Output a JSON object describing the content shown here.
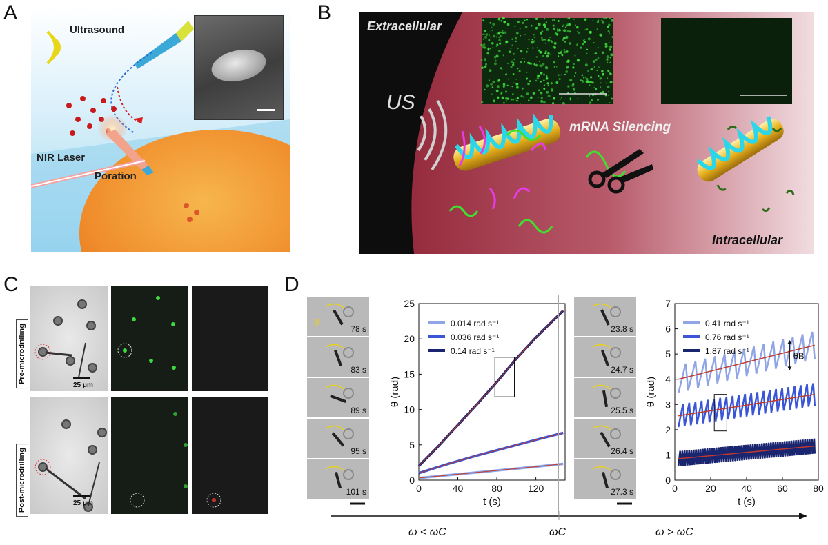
{
  "panels": {
    "a": {
      "label": "A",
      "ultrasound": "Ultrasound",
      "nir_laser": "NIR Laser",
      "poration": "Poration"
    },
    "b": {
      "label": "B",
      "extracellular": "Extracellular",
      "us": "US",
      "mrna": "mRNA Silencing",
      "intracellular": "Intracellular"
    },
    "c": {
      "label": "C",
      "pre": "Pre-microdrilling",
      "post": "Post-microdrilling",
      "scale": "25 μm"
    },
    "d": {
      "label": "D",
      "left_times": [
        "78 s",
        "83 s",
        "89 s",
        "95 s",
        "101 s"
      ],
      "right_times": [
        "23.8 s",
        "24.7 s",
        "25.5 s",
        "26.4 s",
        "27.3 s"
      ],
      "theta_symbol": "θ",
      "arrow_left": "ω < ωC",
      "arrow_mid": "ωC",
      "arrow_right": "ω > ωC",
      "theta_b": "θB"
    }
  },
  "chart_data": [
    {
      "type": "line",
      "xlabel": "t (s)",
      "ylabel": "θ (rad)",
      "xlim": [
        0,
        150
      ],
      "ylim": [
        0,
        25
      ],
      "xticks": [
        0,
        40,
        80,
        120
      ],
      "yticks": [
        0,
        5,
        10,
        15,
        20,
        25
      ],
      "legend": "top-left",
      "series": [
        {
          "name": "0.014 rad s⁻¹",
          "color": "#8fa5e6",
          "x": [
            0,
            30,
            60,
            90,
            120,
            148
          ],
          "y": [
            0.3,
            0.7,
            1.1,
            1.5,
            1.9,
            2.3
          ]
        },
        {
          "name": "0.036 rad s⁻¹",
          "color": "#3a55d6",
          "x": [
            0,
            30,
            60,
            90,
            120,
            148
          ],
          "y": [
            1.0,
            2.3,
            3.5,
            4.6,
            5.7,
            6.7
          ]
        },
        {
          "name": "0.14 rad s⁻¹",
          "color": "#1a2570",
          "x": [
            0,
            20,
            40,
            60,
            80,
            100,
            120,
            148
          ],
          "y": [
            2.0,
            4.8,
            7.8,
            10.8,
            13.9,
            17.2,
            20.2,
            24.0
          ]
        }
      ]
    },
    {
      "type": "line",
      "xlabel": "t (s)",
      "ylabel": "θ (rad)",
      "xlim": [
        0,
        80
      ],
      "ylim": [
        0,
        7
      ],
      "xticks": [
        0,
        20,
        40,
        60,
        80
      ],
      "yticks": [
        0,
        1,
        2,
        3,
        4,
        5,
        6,
        7
      ],
      "legend": "top-left",
      "series": [
        {
          "name": "0.41 rad s⁻¹",
          "color": "#8fa5e6",
          "center": [
            4.0,
            5.35
          ],
          "amplitude": 0.55,
          "oscillations": 14
        },
        {
          "name": "0.76 rad s⁻¹",
          "color": "#3a55d6",
          "center": [
            2.55,
            3.4
          ],
          "amplitude": 0.45,
          "oscillations": 22
        },
        {
          "name": "1.87 rad s⁻¹",
          "color": "#1a2570",
          "center": [
            0.85,
            1.35
          ],
          "amplitude": 0.3,
          "oscillations": 60
        }
      ]
    }
  ]
}
